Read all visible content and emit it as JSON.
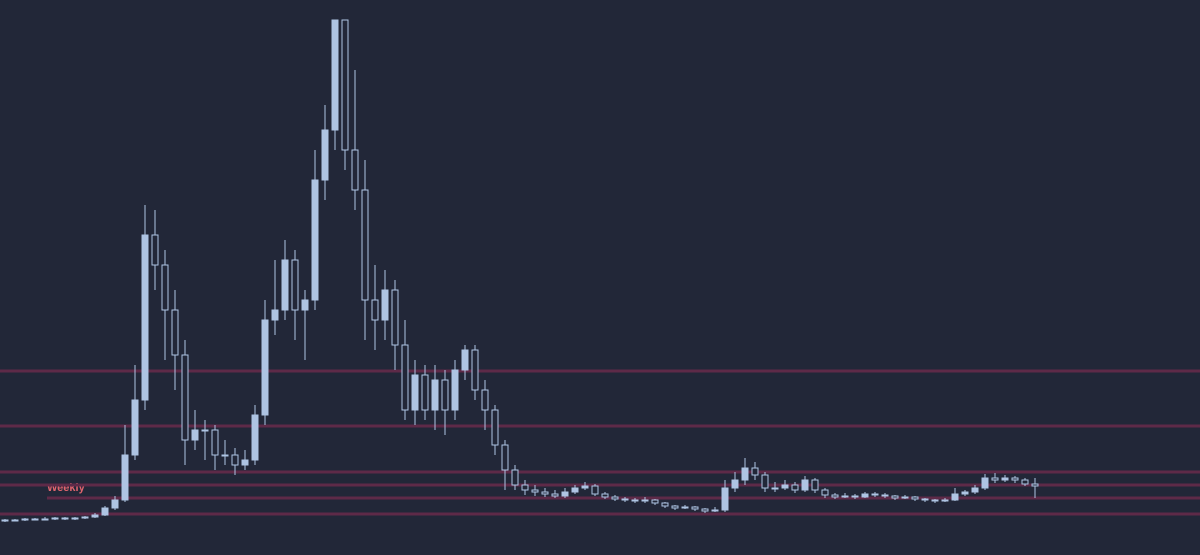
{
  "chart_data": {
    "type": "candlestick",
    "label": "Weekly",
    "color": "#aec4e3",
    "level_color": "#5e2a48",
    "label_color": "#e0646e",
    "ylim": [
      0,
      540
    ],
    "levels": [
      169,
      114,
      68,
      55,
      42,
      26
    ],
    "ohlc": [
      [
        19,
        21,
        18,
        20
      ],
      [
        20,
        21,
        19,
        20
      ],
      [
        20,
        22,
        19,
        21
      ],
      [
        21,
        22,
        20,
        21
      ],
      [
        21,
        23,
        20,
        21
      ],
      [
        21,
        23,
        20,
        22
      ],
      [
        22,
        23,
        20,
        21
      ],
      [
        21,
        23,
        20,
        22
      ],
      [
        22,
        24,
        21,
        23
      ],
      [
        23,
        27,
        22,
        25
      ],
      [
        25,
        34,
        24,
        32
      ],
      [
        32,
        44,
        30,
        40
      ],
      [
        40,
        115,
        38,
        85
      ],
      [
        85,
        175,
        80,
        140
      ],
      [
        140,
        335,
        130,
        305
      ],
      [
        305,
        330,
        250,
        275
      ],
      [
        275,
        290,
        180,
        230
      ],
      [
        230,
        250,
        150,
        185
      ],
      [
        185,
        200,
        75,
        100
      ],
      [
        100,
        130,
        90,
        110
      ],
      [
        110,
        120,
        80,
        110
      ],
      [
        110,
        115,
        70,
        85
      ],
      [
        85,
        100,
        75,
        85
      ],
      [
        85,
        92,
        65,
        75
      ],
      [
        75,
        90,
        70,
        80
      ],
      [
        80,
        135,
        75,
        125
      ],
      [
        125,
        240,
        115,
        220
      ],
      [
        220,
        280,
        205,
        230
      ],
      [
        230,
        300,
        220,
        280
      ],
      [
        280,
        290,
        200,
        230
      ],
      [
        230,
        250,
        180,
        240
      ],
      [
        240,
        390,
        230,
        360
      ],
      [
        360,
        435,
        340,
        410
      ],
      [
        410,
        520,
        390,
        520
      ],
      [
        520,
        520,
        370,
        390
      ],
      [
        390,
        470,
        330,
        350
      ],
      [
        350,
        380,
        200,
        240
      ],
      [
        240,
        275,
        190,
        220
      ],
      [
        220,
        270,
        200,
        250
      ],
      [
        250,
        260,
        170,
        195
      ],
      [
        195,
        220,
        120,
        130
      ],
      [
        130,
        180,
        115,
        165
      ],
      [
        165,
        175,
        120,
        130
      ],
      [
        130,
        175,
        110,
        160
      ],
      [
        160,
        170,
        105,
        130
      ],
      [
        130,
        180,
        120,
        170
      ],
      [
        170,
        195,
        160,
        190
      ],
      [
        190,
        195,
        140,
        150
      ],
      [
        150,
        160,
        110,
        130
      ],
      [
        130,
        135,
        85,
        95
      ],
      [
        95,
        100,
        50,
        70
      ],
      [
        70,
        75,
        50,
        55
      ],
      [
        55,
        60,
        45,
        50
      ],
      [
        50,
        55,
        44,
        48
      ],
      [
        48,
        52,
        43,
        46
      ],
      [
        46,
        50,
        42,
        44
      ],
      [
        44,
        52,
        42,
        48
      ],
      [
        48,
        55,
        46,
        52
      ],
      [
        52,
        58,
        50,
        54
      ],
      [
        54,
        56,
        44,
        46
      ],
      [
        46,
        48,
        41,
        43
      ],
      [
        43,
        45,
        39,
        41
      ],
      [
        41,
        43,
        38,
        40
      ],
      [
        40,
        42,
        37,
        39
      ],
      [
        39,
        43,
        37,
        40
      ],
      [
        40,
        41,
        35,
        37
      ],
      [
        37,
        38,
        32,
        34
      ],
      [
        34,
        35,
        30,
        32
      ],
      [
        32,
        35,
        31,
        33
      ],
      [
        33,
        34,
        29,
        31
      ],
      [
        31,
        32,
        27,
        29
      ],
      [
        29,
        33,
        28,
        30
      ],
      [
        30,
        60,
        28,
        52
      ],
      [
        52,
        68,
        48,
        60
      ],
      [
        60,
        82,
        55,
        72
      ],
      [
        72,
        78,
        60,
        65
      ],
      [
        65,
        68,
        48,
        52
      ],
      [
        52,
        58,
        48,
        52
      ],
      [
        52,
        60,
        50,
        55
      ],
      [
        55,
        58,
        47,
        50
      ],
      [
        50,
        64,
        48,
        60
      ],
      [
        60,
        62,
        47,
        50
      ],
      [
        50,
        52,
        42,
        45
      ],
      [
        45,
        47,
        41,
        43
      ],
      [
        43,
        47,
        42,
        44
      ],
      [
        44,
        46,
        41,
        43
      ],
      [
        43,
        48,
        42,
        46
      ],
      [
        46,
        48,
        43,
        45
      ],
      [
        45,
        47,
        42,
        44
      ],
      [
        44,
        45,
        40,
        42
      ],
      [
        42,
        45,
        41,
        43
      ],
      [
        43,
        44,
        39,
        41
      ],
      [
        41,
        42,
        38,
        40
      ],
      [
        40,
        41,
        37,
        39
      ],
      [
        39,
        42,
        38,
        40
      ],
      [
        40,
        52,
        39,
        46
      ],
      [
        46,
        50,
        44,
        48
      ],
      [
        48,
        55,
        46,
        52
      ],
      [
        52,
        66,
        50,
        62
      ],
      [
        62,
        67,
        57,
        60
      ],
      [
        60,
        65,
        58,
        62
      ],
      [
        62,
        64,
        57,
        60
      ],
      [
        60,
        62,
        54,
        56
      ],
      [
        56,
        62,
        42,
        54
      ]
    ]
  }
}
